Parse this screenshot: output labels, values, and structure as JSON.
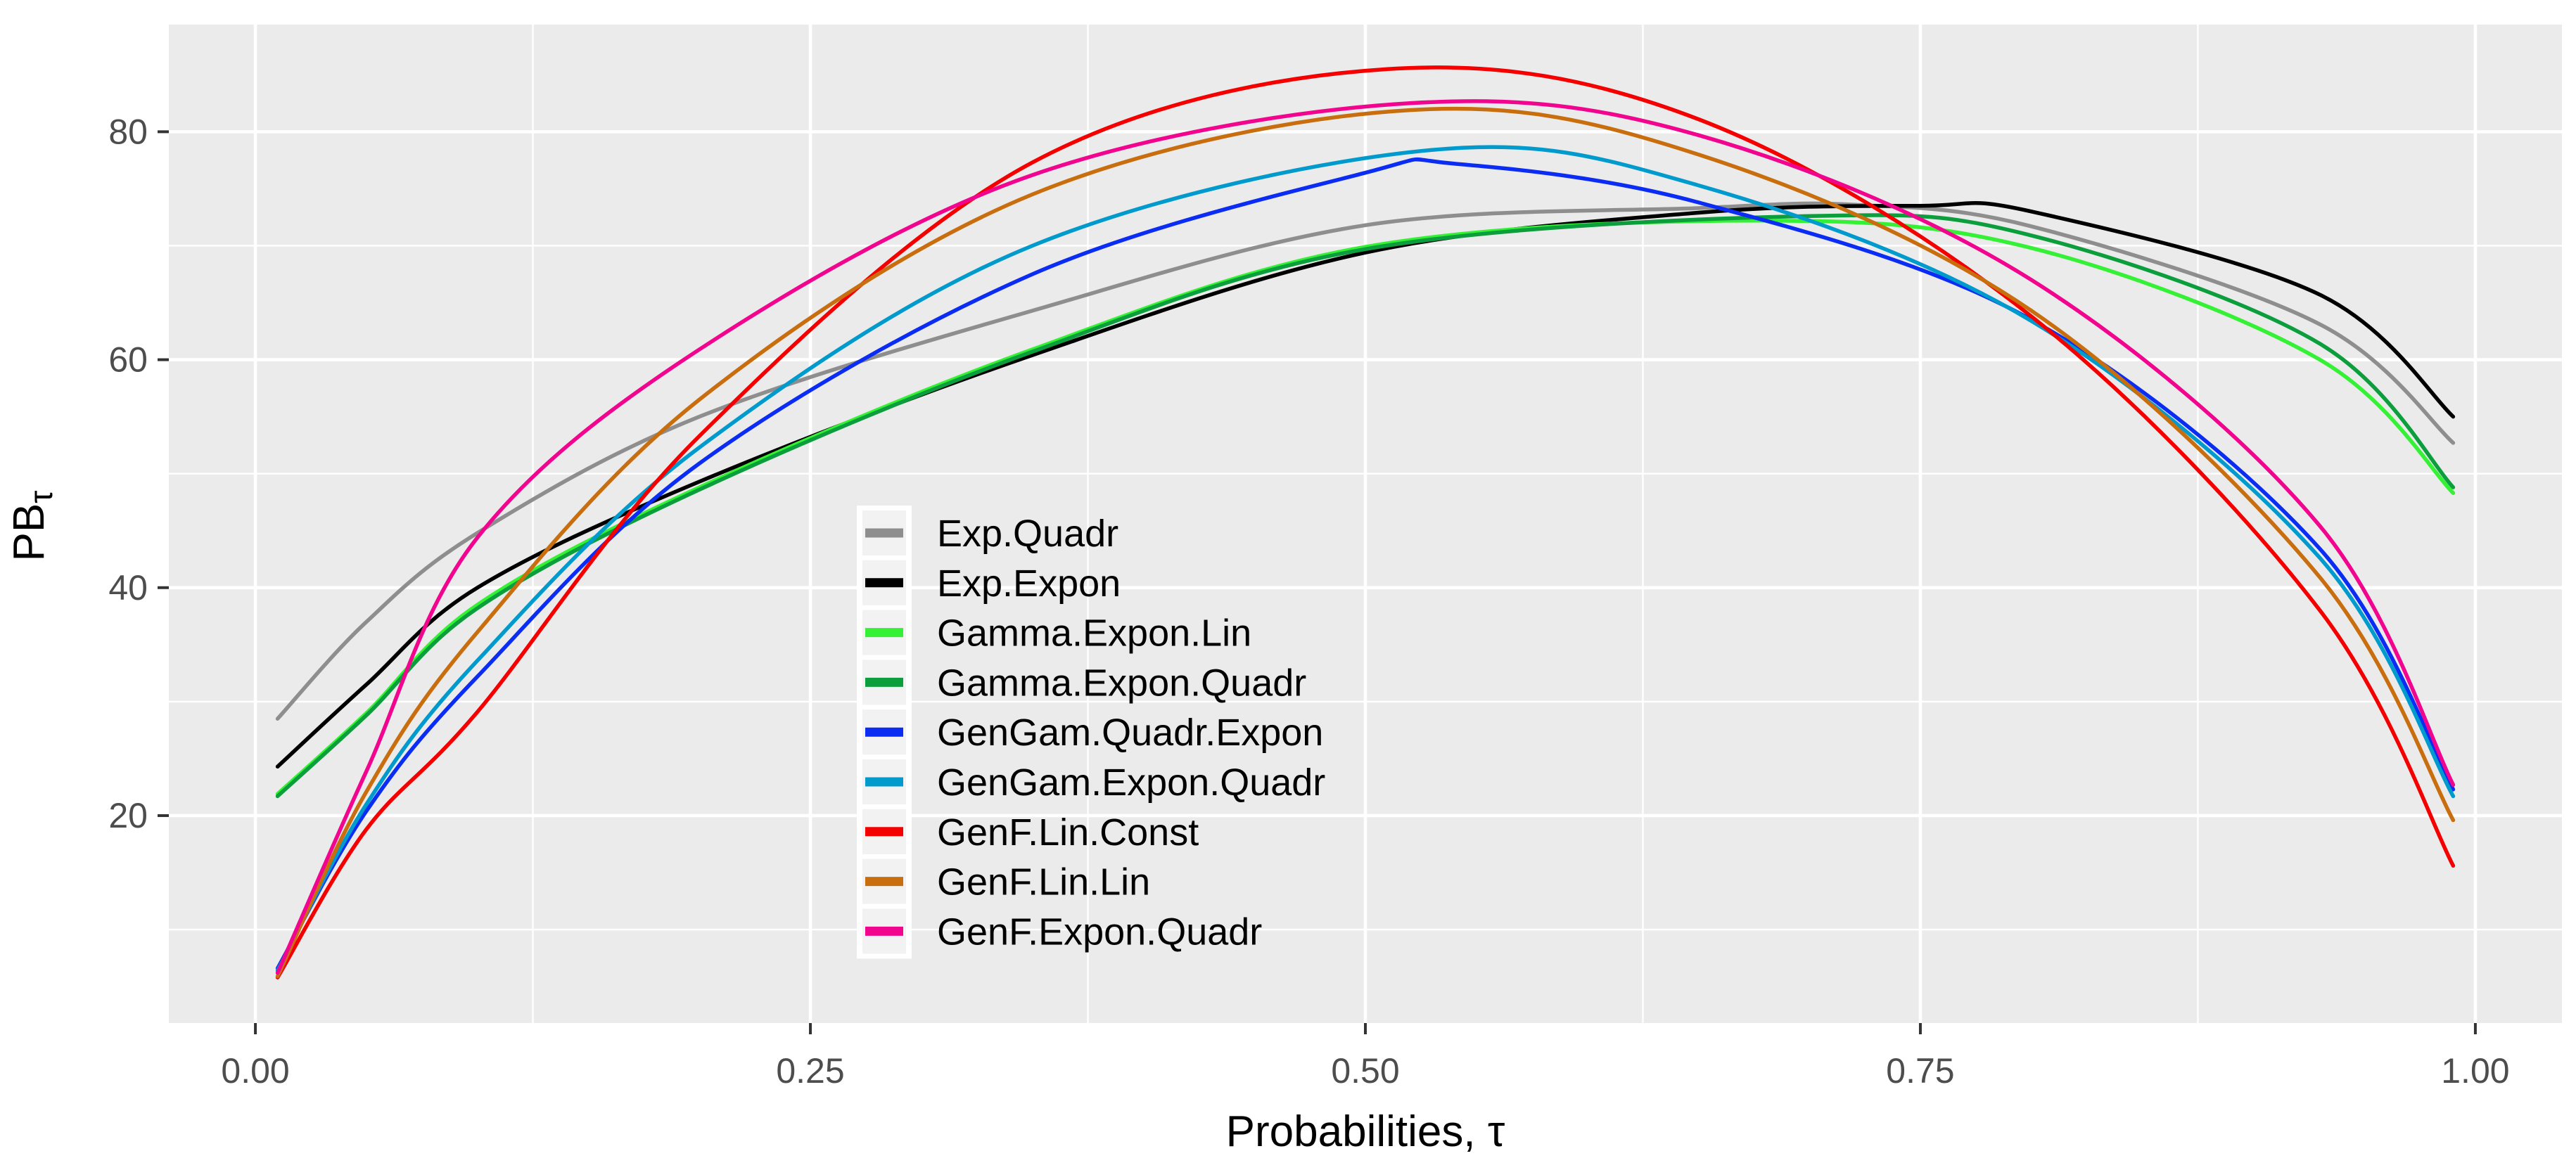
{
  "chart_data": {
    "type": "line",
    "title": "",
    "xlabel": "Probabilities, τ",
    "ylabel_main": "PB",
    "ylabel_sub": "τ",
    "panel_bg": "#EBEBEB",
    "grid_color": "#FFFFFF",
    "tick_color": "#333333",
    "tick_label_color": "#4D4D4D",
    "x_domain": [
      -0.039,
      1.039
    ],
    "y_domain": [
      1.8,
      89.4
    ],
    "x_ticks": {
      "values": [
        0.0,
        0.25,
        0.5,
        0.75,
        1.0
      ],
      "labels": [
        "0.00",
        "0.25",
        "0.50",
        "0.75",
        "1.00"
      ]
    },
    "y_ticks": {
      "values": [
        20,
        40,
        60,
        80
      ],
      "labels": [
        "20",
        "40",
        "60",
        "80"
      ]
    },
    "x_minor": [
      0.125,
      0.375,
      0.625,
      0.875
    ],
    "y_minor": [
      10,
      30,
      50,
      70,
      90
    ],
    "legend_position": "inside-center-left",
    "legend_key_bg": "#F2F2F2",
    "series": [
      {
        "name": "Exp.Quadr",
        "color": "#8E8E8E",
        "points": [
          [
            0.01,
            28.5
          ],
          [
            0.05,
            37.0
          ],
          [
            0.1,
            44.8
          ],
          [
            0.2,
            55.0
          ],
          [
            0.35,
            64.3
          ],
          [
            0.5,
            71.8
          ],
          [
            0.65,
            73.3
          ],
          [
            0.72,
            73.6
          ],
          [
            0.8,
            71.7
          ],
          [
            0.93,
            63.1
          ],
          [
            0.99,
            52.7
          ]
        ]
      },
      {
        "name": "Exp.Expon",
        "color": "#000000",
        "points": [
          [
            0.01,
            24.3
          ],
          [
            0.05,
            31.5
          ],
          [
            0.1,
            40.0
          ],
          [
            0.2,
            49.3
          ],
          [
            0.35,
            60.4
          ],
          [
            0.5,
            69.4
          ],
          [
            0.65,
            72.9
          ],
          [
            0.75,
            73.5
          ],
          [
            0.8,
            73.0
          ],
          [
            0.93,
            65.7
          ],
          [
            0.99,
            55.0
          ]
        ]
      },
      {
        "name": "Gamma.Expon.Lin",
        "color": "#35F135",
        "points": [
          [
            0.01,
            21.9
          ],
          [
            0.05,
            29.0
          ],
          [
            0.1,
            38.5
          ],
          [
            0.2,
            48.8
          ],
          [
            0.35,
            60.9
          ],
          [
            0.5,
            69.9
          ],
          [
            0.68,
            72.2
          ],
          [
            0.8,
            69.8
          ],
          [
            0.93,
            60.0
          ],
          [
            0.99,
            48.3
          ]
        ]
      },
      {
        "name": "Gamma.Expon.Quadr",
        "color": "#0C9E3C",
        "points": [
          [
            0.01,
            21.7
          ],
          [
            0.05,
            28.8
          ],
          [
            0.1,
            38.2
          ],
          [
            0.2,
            48.6
          ],
          [
            0.35,
            60.7
          ],
          [
            0.5,
            69.7
          ],
          [
            0.7,
            72.6
          ],
          [
            0.8,
            70.9
          ],
          [
            0.93,
            61.4
          ],
          [
            0.99,
            48.8
          ]
        ]
      },
      {
        "name": "GenGam.Quadr.Expon",
        "color": "#0B2CF2",
        "points": [
          [
            0.01,
            6.6
          ],
          [
            0.05,
            20.4
          ],
          [
            0.1,
            32.2
          ],
          [
            0.2,
            50.9
          ],
          [
            0.35,
            67.5
          ],
          [
            0.5,
            76.4
          ],
          [
            0.54,
            77.2
          ],
          [
            0.65,
            73.8
          ],
          [
            0.8,
            63.5
          ],
          [
            0.93,
            43.4
          ],
          [
            0.99,
            22.3
          ]
        ]
      },
      {
        "name": "GenGam.Expon.Quadr",
        "color": "#009ACD",
        "points": [
          [
            0.01,
            6.4
          ],
          [
            0.05,
            21.0
          ],
          [
            0.1,
            33.6
          ],
          [
            0.2,
            52.3
          ],
          [
            0.35,
            70.0
          ],
          [
            0.53,
            78.4
          ],
          [
            0.65,
            75.3
          ],
          [
            0.8,
            63.4
          ],
          [
            0.93,
            42.6
          ],
          [
            0.99,
            21.7
          ]
        ]
      },
      {
        "name": "GenF.Lin.Const",
        "color": "#F50000",
        "points": [
          [
            0.01,
            5.8
          ],
          [
            0.05,
            18.8
          ],
          [
            0.1,
            29.1
          ],
          [
            0.2,
            53.3
          ],
          [
            0.35,
            77.3
          ],
          [
            0.51,
            85.5
          ],
          [
            0.65,
            81.1
          ],
          [
            0.8,
            63.8
          ],
          [
            0.93,
            38.0
          ],
          [
            0.99,
            15.6
          ]
        ]
      },
      {
        "name": "GenF.Lin.Lin",
        "color": "#C96E0E",
        "points": [
          [
            0.01,
            5.9
          ],
          [
            0.05,
            22.1
          ],
          [
            0.1,
            36.1
          ],
          [
            0.2,
            56.5
          ],
          [
            0.35,
            74.5
          ],
          [
            0.52,
            81.9
          ],
          [
            0.65,
            78.0
          ],
          [
            0.8,
            64.3
          ],
          [
            0.93,
            40.9
          ],
          [
            0.99,
            19.6
          ]
        ]
      },
      {
        "name": "GenF.Expon.Quadr",
        "color": "#F2058E",
        "points": [
          [
            0.01,
            6.2
          ],
          [
            0.05,
            23.9
          ],
          [
            0.1,
            44.4
          ],
          [
            0.2,
            60.9
          ],
          [
            0.35,
            76.2
          ],
          [
            0.52,
            82.5
          ],
          [
            0.65,
            79.7
          ],
          [
            0.8,
            67.0
          ],
          [
            0.93,
            45.4
          ],
          [
            0.99,
            22.7
          ]
        ]
      }
    ]
  }
}
